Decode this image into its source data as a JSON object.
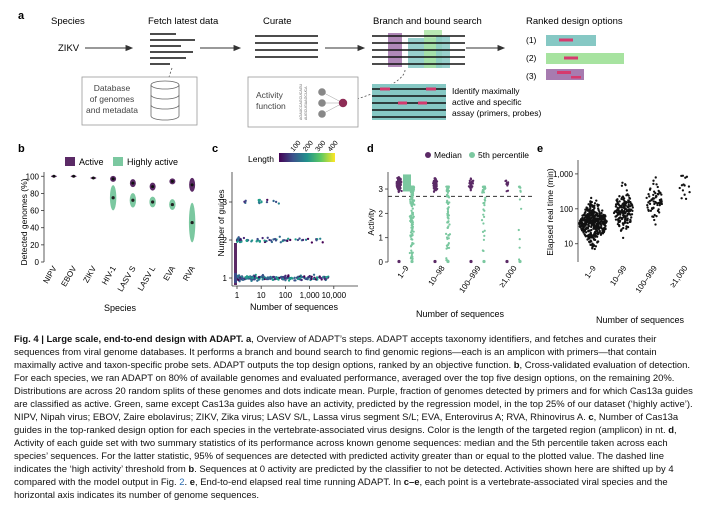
{
  "panel_a": {
    "label": "a",
    "steps": [
      "Species",
      "Fetch latest data",
      "Curate",
      "Branch and bound search",
      "Ranked design options"
    ],
    "species_name": "ZIKV",
    "database_label": [
      "Database",
      "of genomes",
      "and metadata"
    ],
    "activity_function_label": [
      "Activity",
      "function"
    ],
    "identify_label": [
      "Identify maximally",
      "active and specific",
      "assay (primers, probes)"
    ],
    "ranks": [
      "(1)",
      "(2)",
      "(3)"
    ],
    "sequence_text": [
      "AGAUCCAGCUCAGU",
      "AUGCUGAAGCUCA"
    ],
    "colors": {
      "purple": "#a77bb0",
      "green": "#a7e3a0",
      "teal": "#86c8c4",
      "pink": "#d63a6e",
      "dark_purple": "#5b2a66",
      "mint": "#7bc8a0"
    }
  },
  "panel_b": {
    "label": "b",
    "ylabel": "Detected genomes (%)",
    "xlabel": "Species",
    "legend": [
      "Active",
      "Highly active"
    ]
  },
  "panel_c": {
    "label": "c",
    "legend_title": "Length",
    "xlabel": "Number of sequences",
    "ylabel": "Number of guides"
  },
  "panel_d": {
    "label": "d",
    "legend": [
      "Median",
      "5th percentile"
    ],
    "xlabel": "Number of sequences",
    "ylabel": "Activity"
  },
  "panel_e": {
    "label": "e",
    "xlabel": "Number of sequences",
    "ylabel": "Elapsed real time (min)"
  },
  "chart_data": [
    {
      "type": "violin",
      "panel": "b",
      "xlabel": "Species",
      "ylabel": "Detected genomes (%)",
      "categories": [
        "NIPV",
        "EBOV",
        "ZIKV",
        "HIV-1",
        "LASV S",
        "LASV L",
        "EVA",
        "RVA"
      ],
      "ylim": [
        0,
        105
      ],
      "yticks": [
        0,
        20,
        40,
        60,
        80,
        100
      ],
      "series": [
        {
          "name": "Active",
          "color": "#5b2a66",
          "values": [
            100,
            100,
            98,
            97,
            92,
            88,
            94,
            90
          ]
        },
        {
          "name": "Highly active",
          "color": "#7bc8a0",
          "values": [
            null,
            null,
            null,
            75,
            72,
            70,
            67,
            46
          ]
        }
      ]
    },
    {
      "type": "scatter",
      "panel": "c",
      "xlabel": "Number of sequences",
      "ylabel": "Number of guides",
      "x_scale": "log",
      "xlim": [
        1,
        100000
      ],
      "xticks": [
        "1",
        "10",
        "100",
        "1,000",
        "10,000"
      ],
      "yticks": [
        1,
        2,
        3
      ],
      "colorbar": {
        "title": "Length",
        "ticks": [
          "100",
          "200",
          "300",
          "400"
        ],
        "range": [
          0,
          450
        ]
      }
    },
    {
      "type": "strip",
      "panel": "d",
      "xlabel": "Number of sequences",
      "ylabel": "Activity",
      "categories": [
        "1–9",
        "10–98",
        "100–999",
        "≥1,000"
      ],
      "yticks": [
        0,
        1,
        2,
        3
      ],
      "ylim": [
        0,
        3.7
      ],
      "threshold": 2.7,
      "series": [
        {
          "name": "Median",
          "color": "#5b2a66"
        },
        {
          "name": "5th percentile",
          "color": "#7bc8a0"
        }
      ]
    },
    {
      "type": "beeswarm",
      "panel": "e",
      "xlabel": "Number of sequences",
      "ylabel": "Elapsed real time (min)",
      "y_scale": "log",
      "ylim": [
        3,
        2500
      ],
      "yticks": [
        "10",
        "100",
        "1,000"
      ],
      "categories": [
        "1–9",
        "10–99",
        "100–999",
        "≥1,000"
      ],
      "medians": [
        40,
        90,
        180,
        420
      ]
    }
  ],
  "caption": {
    "title": "Fig. 4 | Large scale, end-to-end design with ADAPT.",
    "a_label": "a",
    "a_text": ", Overview of ADAPT’s steps. ADAPT accepts taxonomy identifiers, and fetches and curates their sequences from viral genome databases. It performs a branch and bound search to find genomic regions—each is an amplicon with primers—that contain maximally active and taxon-specific probe sets. ADAPT outputs the top design options, ranked by an objective function.",
    "b_label": "b",
    "b_text": ", Cross-validated evaluation of detection. For each species, we ran ADAPT on 80% of available genomes and evaluated performance, averaged over the top five design options, on the remaining 20%. Distributions are across 20 random splits of these genomes and dots indicate mean. Purple, fraction of genomes detected by primers and for which Cas13a guides are classified as active. Green, same except Cas13a guides also have an activity, predicted by the regression model, in the top 25% of our dataset (‘highly active’). NIPV, Nipah virus; EBOV, Zaire ebolavirus; ZIKV, Zika virus; LASV S/L, Lassa virus segment S/L; EVA, Enterovirus A; RVA, Rhinovirus A.",
    "c_label": "c",
    "c_text": ", Number of Cas13a guides in the top-ranked design option for each species in the vertebrate-associated virus designs. Color is the length of the targeted region (amplicon) in nt.",
    "d_label": "d",
    "d_text": ", Activity of each guide set with two summary statistics of its performance across known genome sequences: median and the 5th percentile taken across each species’ sequences. For the latter statistic, 95% of sequences are detected with predicted activity greater than or equal to the plotted value. The dashed line indicates the ‘high activity’ threshold from",
    "d_ref": "b",
    "d_text2": ". Sequences at 0 activity are predicted by the classifier to not be detected. Activities shown here are shifted up by 4 compared with the model output in Fig.",
    "fig_ref": "2",
    "e_label": "e",
    "e_text": ", End-to-end elapsed real time running ADAPT. In",
    "ce_label": "c–e",
    "ce_text": ", each point is a vertebrate-associated viral species and the horizontal axis indicates its number of genome sequences."
  }
}
